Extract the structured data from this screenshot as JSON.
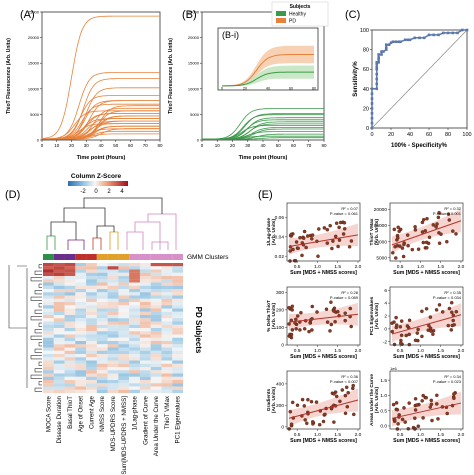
{
  "colors": {
    "healthy": "#3a9a48",
    "pd": "#e8823a",
    "pd_fill": "#f6c9a6",
    "healthy_fill": "#c4e6c0",
    "roc": "#5a78aa",
    "scatter_dot": "#8a3a22",
    "scatter_line": "#b8322a",
    "scatter_band": "#f0b8b0"
  },
  "panels": {
    "a": {
      "label": "(A)",
      "ylabel": "ThioT Fluorescence (Arb. Units)",
      "xlabel": "Time point (Hours)",
      "yticks": [
        "0",
        "5000",
        "10000",
        "15000",
        "20000",
        "25000"
      ],
      "xticks": [
        "0",
        "10",
        "20",
        "30",
        "40",
        "50",
        "60",
        "70",
        "80"
      ]
    },
    "b": {
      "label": "(B)",
      "inset_label": "(B-i)",
      "ylabel": "ThioT Fluorescence (Arb. Units)",
      "xlabel": "Time point (Hours)",
      "yticks": [
        "0",
        "5000",
        "10000",
        "15000",
        "20000",
        "25000"
      ],
      "xticks": [
        "0",
        "10",
        "20",
        "30",
        "40",
        "50",
        "60",
        "70",
        "80"
      ],
      "inset_xticks": [
        "0",
        "20",
        "40",
        "60",
        "80"
      ],
      "legend_title": "Subjects",
      "legend_healthy": "Healthy",
      "legend_pd": "PD"
    },
    "c": {
      "label": "(C)",
      "ylabel": "Sensitivity%",
      "xlabel": "100% - Specificity%",
      "ticks": [
        "0",
        "20",
        "40",
        "60",
        "80",
        "100"
      ]
    },
    "d": {
      "label": "(D)",
      "colorbar_title": "Column Z-Score",
      "colorbar_ticks": [
        "-2",
        "0",
        "2",
        "4"
      ],
      "gmm_label": "GMM Clusters",
      "rows_label": "PD Subjects",
      "columns": [
        "MOCA Score",
        "Disease Duration",
        "Basal ThioT",
        "Age of Onset",
        "Current Age",
        "NMSS Score",
        "MDS-UPDRS Score",
        "Sum[MDS-UPDRS + NMSS]",
        "1/Lag-phase",
        "Gradient of Curve",
        "Area Under the Curve",
        "ThioT VMax",
        "PC1 Eigenvalues"
      ]
    },
    "e": {
      "label": "(E)",
      "xlabel": "Sum [MDS + NMSS scores]",
      "xticks": [
        "0.5",
        "1.0",
        "1.5",
        "2.0"
      ],
      "plots": [
        {
          "ylabel": "1/Lag-phase\n(Arb. Units)",
          "yticks": [
            "0.02",
            "0.04",
            "0.06"
          ],
          "r2": "R² = 0.07",
          "p": "P-value = 0.061",
          "ymin": 0.015,
          "ymax": 0.075,
          "slope_start": 0.03,
          "slope_end": 0.042
        },
        {
          "ylabel": "ThioT VMax\n(Arb. Units)",
          "yticks": [
            "5000",
            "10000",
            "15000",
            "20000"
          ],
          "r2": "R² = 0.32",
          "p": "P-value < 0.001",
          "ymin": 4000,
          "ymax": 22000,
          "slope_start": 9000,
          "slope_end": 16500
        },
        {
          "ylabel": "% Delta ThioT\n(Arb. Units)",
          "yticks": [
            "0",
            "100",
            "200",
            "300"
          ],
          "r2": "R² = 0.28",
          "p": "P-value = 0.089",
          "ymin": 0,
          "ymax": 330,
          "slope_start": 130,
          "slope_end": 175
        },
        {
          "ylabel": "PC1 Eigenvalues\n(Arb. Units)",
          "yticks": [
            "-2",
            "0",
            "2",
            "4",
            "6"
          ],
          "r2": "R² = 0.35",
          "p": "P-value = 0.034",
          "ymin": -2.5,
          "ymax": 6.5,
          "slope_start": -0.8,
          "slope_end": 2.2
        },
        {
          "ylabel": "Gradients\n(Arb. Units)",
          "yticks": [
            "0",
            "200",
            "400"
          ],
          "r2": "R² = 0.36",
          "p": "P-value < 0.007",
          "ymin": -20,
          "ymax": 520,
          "slope_start": 80,
          "slope_end": 250
        },
        {
          "ylabel": "Areas Under the Curve\n(Arb. Units)",
          "yticks": [
            "0.0",
            "0.5",
            "1.0",
            "1.5"
          ],
          "r2": "R² = 0.34",
          "p": "P-value = 0.023",
          "ymin": -0.1,
          "ymax": 1.8,
          "slope_start": 0.25,
          "slope_end": 0.75,
          "top_label": "1e6"
        }
      ]
    }
  },
  "chart_data": [
    {
      "type": "line",
      "panel": "A",
      "x": [
        0,
        10,
        20,
        30,
        40,
        50,
        60,
        70,
        80
      ],
      "ylim": [
        0,
        25000
      ],
      "xlim": [
        0,
        80
      ],
      "series": [
        {
          "plateau": 24000,
          "midpoint": 20
        },
        {
          "plateau": 13000,
          "midpoint": 25
        },
        {
          "plateau": 11800,
          "midpoint": 28
        },
        {
          "plateau": 10000,
          "midpoint": 30
        },
        {
          "plateau": 8500,
          "midpoint": 26
        },
        {
          "plateau": 7500,
          "midpoint": 32
        },
        {
          "plateau": 6800,
          "midpoint": 27
        },
        {
          "plateau": 6000,
          "midpoint": 35
        },
        {
          "plateau": 5500,
          "midpoint": 22
        },
        {
          "plateau": 5000,
          "midpoint": 30
        },
        {
          "plateau": 4500,
          "midpoint": 38
        },
        {
          "plateau": 4000,
          "midpoint": 28
        },
        {
          "plateau": 3500,
          "midpoint": 33
        },
        {
          "plateau": 3000,
          "midpoint": 25
        },
        {
          "plateau": 2500,
          "midpoint": 36
        },
        {
          "plateau": 2000,
          "midpoint": 40
        },
        {
          "plateau": 5000,
          "midpoint": 29
        },
        {
          "plateau": 4000,
          "midpoint": 31
        },
        {
          "plateau": 3000,
          "midpoint": 31
        },
        {
          "plateau": 2000,
          "midpoint": 32
        },
        {
          "plateau": 1000,
          "midpoint": 33
        },
        {
          "plateau": 1500,
          "midpoint": 34
        },
        {
          "plateau": 2500,
          "midpoint": 35
        },
        {
          "plateau": 3500,
          "midpoint": 36
        },
        {
          "plateau": 4500,
          "midpoint": 37
        },
        {
          "plateau": 5500,
          "midpoint": 38
        },
        {
          "plateau": 6500,
          "midpoint": 39
        },
        {
          "plateau": 7500,
          "midpoint": 29
        }
      ]
    },
    {
      "type": "line",
      "panel": "B",
      "xlim": [
        0,
        80
      ],
      "ylim": [
        0,
        25000
      ],
      "series": [
        {
          "plateau": 6000,
          "midpoint": 25
        },
        {
          "plateau": 5000,
          "midpoint": 28
        },
        {
          "plateau": 4200,
          "midpoint": 30
        },
        {
          "plateau": 3400,
          "midpoint": 32
        },
        {
          "plateau": 2700,
          "midpoint": 26
        },
        {
          "plateau": 2000,
          "midpoint": 34
        },
        {
          "plateau": 1500,
          "midpoint": 30
        },
        {
          "plateau": 1000,
          "midpoint": 36
        },
        {
          "plateau": 600,
          "midpoint": 28
        },
        {
          "plateau": 300,
          "midpoint": 38
        },
        {
          "plateau": 4800,
          "midpoint": 27
        },
        {
          "plateau": 3800,
          "midpoint": 29
        },
        {
          "plateau": 3000,
          "midpoint": 31
        },
        {
          "plateau": 2300,
          "midpoint": 33
        }
      ],
      "inset": {
        "pd_mean_plateau": 21500,
        "pd_band": 6000,
        "healthy_mean_plateau": 9500,
        "healthy_band": 4500,
        "ylim": [
          0,
          30000
        ]
      }
    },
    {
      "type": "scatter",
      "panel": "C",
      "xlim": [
        0,
        100
      ],
      "ylim": [
        0,
        100
      ],
      "points": [
        [
          0,
          0
        ],
        [
          0,
          5
        ],
        [
          0,
          10
        ],
        [
          0,
          15
        ],
        [
          0,
          20
        ],
        [
          0,
          25
        ],
        [
          0,
          30
        ],
        [
          0,
          35
        ],
        [
          0,
          40
        ],
        [
          5,
          40
        ],
        [
          5,
          45
        ],
        [
          5,
          50
        ],
        [
          5,
          55
        ],
        [
          5,
          60
        ],
        [
          5,
          62
        ],
        [
          5,
          65
        ],
        [
          5,
          67
        ],
        [
          7,
          67
        ],
        [
          7,
          70
        ],
        [
          7,
          72
        ],
        [
          7,
          75
        ],
        [
          10,
          75
        ],
        [
          10,
          78
        ],
        [
          12,
          78
        ],
        [
          15,
          80
        ],
        [
          15,
          82
        ],
        [
          15,
          85
        ],
        [
          18,
          85
        ],
        [
          20,
          87
        ],
        [
          22,
          88
        ],
        [
          25,
          88
        ],
        [
          28,
          88
        ],
        [
          30,
          88
        ],
        [
          35,
          90
        ],
        [
          38,
          90
        ],
        [
          40,
          90
        ],
        [
          45,
          92
        ],
        [
          50,
          92
        ],
        [
          55,
          92
        ],
        [
          60,
          95
        ],
        [
          65,
          95
        ],
        [
          70,
          95
        ],
        [
          75,
          97
        ],
        [
          80,
          97
        ],
        [
          85,
          97
        ],
        [
          90,
          97
        ],
        [
          95,
          100
        ],
        [
          100,
          100
        ]
      ]
    }
  ]
}
